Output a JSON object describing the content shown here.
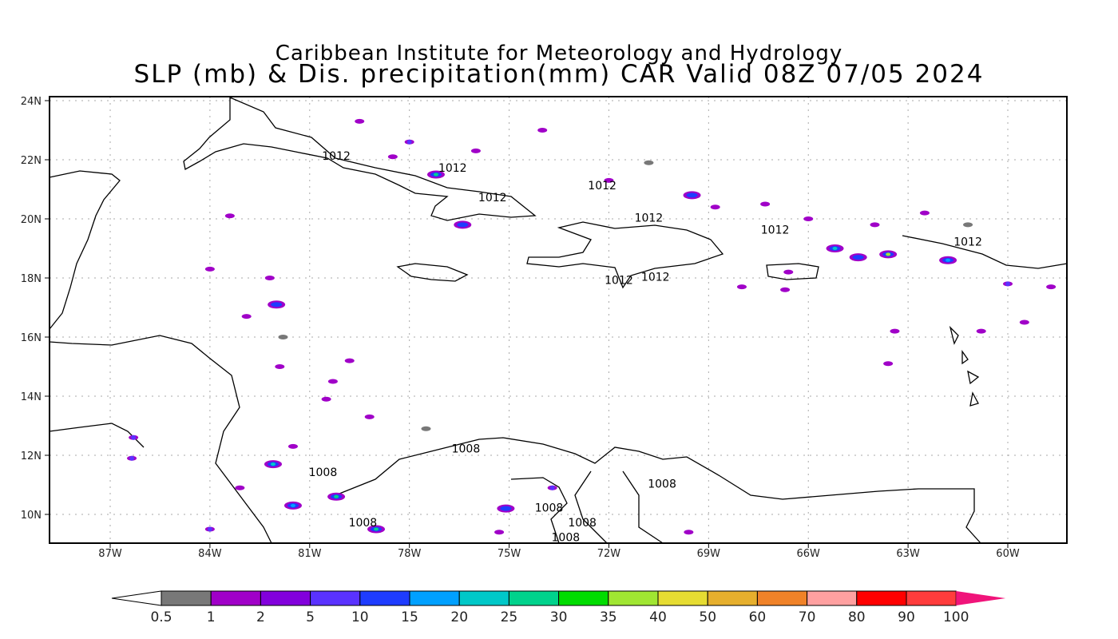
{
  "title": {
    "line1": "Caribbean Institute for Meteorology and Hydrology",
    "line2": "SLP (mb) & Dis. precipitation(mm) CAR Valid 08Z 07/05 2024"
  },
  "map": {
    "lon_range": [
      -88.8,
      -58.2
    ],
    "lat_range": [
      9,
      24.15
    ],
    "lat_ticks": [
      {
        "v": 24,
        "label": "24N"
      },
      {
        "v": 22,
        "label": "22N"
      },
      {
        "v": 20,
        "label": "20N"
      },
      {
        "v": 18,
        "label": "18N"
      },
      {
        "v": 16,
        "label": "16N"
      },
      {
        "v": 14,
        "label": "14N"
      },
      {
        "v": 12,
        "label": "12N"
      },
      {
        "v": 10,
        "label": "10N"
      }
    ],
    "lon_ticks": [
      {
        "v": -87,
        "label": "87W"
      },
      {
        "v": -84,
        "label": "84W"
      },
      {
        "v": -81,
        "label": "81W"
      },
      {
        "v": -78,
        "label": "78W"
      },
      {
        "v": -75,
        "label": "75W"
      },
      {
        "v": -72,
        "label": "72W"
      },
      {
        "v": -69,
        "label": "69W"
      },
      {
        "v": -66,
        "label": "66W"
      },
      {
        "v": -63,
        "label": "63W"
      },
      {
        "v": -60,
        "label": "60W"
      }
    ],
    "contour_labels": [
      {
        "text": "1012",
        "lon": -80.2,
        "lat": 22.0
      },
      {
        "text": "1012",
        "lon": -76.7,
        "lat": 21.6
      },
      {
        "text": "1012",
        "lon": -75.5,
        "lat": 20.6
      },
      {
        "text": "1012",
        "lon": -72.2,
        "lat": 21.0
      },
      {
        "text": "1012",
        "lon": -70.8,
        "lat": 19.9
      },
      {
        "text": "1012",
        "lon": -67.0,
        "lat": 19.5
      },
      {
        "text": "1012",
        "lon": -71.7,
        "lat": 17.8
      },
      {
        "text": "1012",
        "lon": -70.6,
        "lat": 17.9
      },
      {
        "text": "1012",
        "lon": -61.2,
        "lat": 19.1
      },
      {
        "text": "1008",
        "lon": -80.6,
        "lat": 11.3
      },
      {
        "text": "1008",
        "lon": -76.3,
        "lat": 12.1
      },
      {
        "text": "1008",
        "lon": -79.4,
        "lat": 9.6
      },
      {
        "text": "1008",
        "lon": -73.8,
        "lat": 10.1
      },
      {
        "text": "1008",
        "lon": -72.8,
        "lat": 9.6
      },
      {
        "text": "1008",
        "lon": -73.3,
        "lat": 9.1
      },
      {
        "text": "1008",
        "lon": -70.4,
        "lat": 10.9
      }
    ],
    "precip_cells": [
      {
        "lon": -78.0,
        "lat": 22.6,
        "mm": 5
      },
      {
        "lon": -77.2,
        "lat": 21.5,
        "mm": 25
      },
      {
        "lon": -69.5,
        "lat": 20.8,
        "mm": 10
      },
      {
        "lon": -65.2,
        "lat": 19.0,
        "mm": 20
      },
      {
        "lon": -63.6,
        "lat": 18.8,
        "mm": 35
      },
      {
        "lon": -61.8,
        "lat": 18.6,
        "mm": 15
      },
      {
        "lon": -82.0,
        "lat": 17.1,
        "mm": 10
      },
      {
        "lon": -86.3,
        "lat": 12.6,
        "mm": 5
      },
      {
        "lon": -86.35,
        "lat": 11.9,
        "mm": 5
      },
      {
        "lon": -82.1,
        "lat": 11.7,
        "mm": 20
      },
      {
        "lon": -80.2,
        "lat": 10.6,
        "mm": 25
      },
      {
        "lon": -81.5,
        "lat": 10.3,
        "mm": 15
      },
      {
        "lon": -79.0,
        "lat": 9.5,
        "mm": 25
      },
      {
        "lon": -73.7,
        "lat": 10.9,
        "mm": 5
      },
      {
        "lon": -75.1,
        "lat": 10.2,
        "mm": 10
      },
      {
        "lon": -75.3,
        "lat": 9.4,
        "mm": 2
      },
      {
        "lon": -76.4,
        "lat": 19.8,
        "mm": 10
      },
      {
        "lon": -64.5,
        "lat": 18.7,
        "mm": 10
      },
      {
        "lon": -79.5,
        "lat": 23.3,
        "mm": 2
      },
      {
        "lon": -78.5,
        "lat": 22.1,
        "mm": 2
      },
      {
        "lon": -76.0,
        "lat": 22.3,
        "mm": 2
      },
      {
        "lon": -74.0,
        "lat": 23.0,
        "mm": 1
      },
      {
        "lon": -72.0,
        "lat": 21.3,
        "mm": 2
      },
      {
        "lon": -68.8,
        "lat": 20.4,
        "mm": 2
      },
      {
        "lon": -67.3,
        "lat": 20.5,
        "mm": 1
      },
      {
        "lon": -66.0,
        "lat": 20.0,
        "mm": 2
      },
      {
        "lon": -64.0,
        "lat": 19.8,
        "mm": 2
      },
      {
        "lon": -62.5,
        "lat": 20.2,
        "mm": 1
      },
      {
        "lon": -68.0,
        "lat": 17.7,
        "mm": 2
      },
      {
        "lon": -66.7,
        "lat": 17.6,
        "mm": 2
      },
      {
        "lon": -60.0,
        "lat": 17.8,
        "mm": 5
      },
      {
        "lon": -58.7,
        "lat": 17.7,
        "mm": 2
      },
      {
        "lon": -63.4,
        "lat": 16.2,
        "mm": 2
      },
      {
        "lon": -63.6,
        "lat": 15.1,
        "mm": 2
      },
      {
        "lon": -60.8,
        "lat": 16.2,
        "mm": 2
      },
      {
        "lon": -59.5,
        "lat": 16.5,
        "mm": 2
      },
      {
        "lon": -83.4,
        "lat": 20.1,
        "mm": 2
      },
      {
        "lon": -82.2,
        "lat": 18.0,
        "mm": 2
      },
      {
        "lon": -84.0,
        "lat": 18.3,
        "mm": 2
      },
      {
        "lon": -82.9,
        "lat": 16.7,
        "mm": 2
      },
      {
        "lon": -81.9,
        "lat": 15.0,
        "mm": 1
      },
      {
        "lon": -80.3,
        "lat": 14.5,
        "mm": 2
      },
      {
        "lon": -79.8,
        "lat": 15.2,
        "mm": 1
      },
      {
        "lon": -80.5,
        "lat": 13.9,
        "mm": 2
      },
      {
        "lon": -79.2,
        "lat": 13.3,
        "mm": 1
      },
      {
        "lon": -81.5,
        "lat": 12.3,
        "mm": 2
      },
      {
        "lon": -83.1,
        "lat": 10.9,
        "mm": 2
      },
      {
        "lon": -84.0,
        "lat": 9.5,
        "mm": 5
      },
      {
        "lon": -81.8,
        "lat": 16.0,
        "mm": 0.5
      },
      {
        "lon": -77.5,
        "lat": 12.9,
        "mm": 0.5
      },
      {
        "lon": -70.8,
        "lat": 21.9,
        "mm": 0.5
      },
      {
        "lon": -61.2,
        "lat": 19.8,
        "mm": 0.5
      },
      {
        "lon": -69.6,
        "lat": 9.4,
        "mm": 2
      },
      {
        "lon": -66.6,
        "lat": 18.2,
        "mm": 1
      }
    ]
  },
  "colorbar": {
    "labels": [
      "0.5",
      "1",
      "2",
      "5",
      "10",
      "15",
      "20",
      "25",
      "30",
      "35",
      "40",
      "50",
      "60",
      "70",
      "80",
      "90",
      "100"
    ],
    "under_color": "#ffffff",
    "colors": [
      "#787878",
      "#a000c8",
      "#8200dc",
      "#5a32ff",
      "#1e3cff",
      "#00a0ff",
      "#00c8c8",
      "#00d28c",
      "#00dc00",
      "#a0e632",
      "#e6dc32",
      "#e6af2d",
      "#f08228",
      "#ffa0a0",
      "#ff0000",
      "#ff3c3c"
    ],
    "over_color": "#f0147a"
  }
}
